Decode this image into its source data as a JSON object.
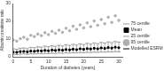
{
  "chart_data": {
    "type": "scatter",
    "x_label": "Duration of diabetes (years)",
    "y_label": "Albumin:creatinine ratio",
    "x": [
      0,
      1,
      2,
      3,
      4,
      5,
      6,
      7,
      8,
      9,
      10,
      11,
      12,
      13,
      14,
      15,
      16,
      17,
      18,
      19,
      20,
      21,
      22,
      23,
      24,
      25,
      26,
      27,
      28,
      29,
      30
    ],
    "series": [
      {
        "name": "75 centile",
        "color": "#999999",
        "marker": "dash",
        "values": [
          4.5,
          4.2,
          4.8,
          5.0,
          4.6,
          5.3,
          5.1,
          5.6,
          5.4,
          6.0,
          5.7,
          6.2,
          5.9,
          6.5,
          6.1,
          6.8,
          6.4,
          7.0,
          6.6,
          7.3,
          6.9,
          7.6,
          7.1,
          7.8,
          7.4,
          8.1,
          7.7,
          8.4,
          8.0,
          8.6,
          8.3
        ]
      },
      {
        "name": "Mean",
        "color": "#000000",
        "marker": "square",
        "values": [
          2.6,
          2.5,
          2.9,
          3.0,
          2.8,
          3.2,
          3.1,
          3.4,
          3.3,
          3.6,
          3.4,
          3.8,
          3.6,
          3.9,
          3.7,
          4.1,
          3.9,
          4.3,
          4.0,
          4.5,
          4.2,
          4.6,
          4.4,
          4.8,
          4.5,
          5.0,
          4.7,
          5.2,
          4.9,
          5.4,
          5.1
        ]
      },
      {
        "name": "25 centile",
        "color": "#999999",
        "marker": "dash",
        "values": [
          1.4,
          1.3,
          1.5,
          1.6,
          1.4,
          1.7,
          1.6,
          1.8,
          1.7,
          1.9,
          1.8,
          2.0,
          1.9,
          2.1,
          2.0,
          2.2,
          2.1,
          2.3,
          2.2,
          2.4,
          2.3,
          2.5,
          2.4,
          2.6,
          2.5,
          2.7,
          2.6,
          2.8,
          2.7,
          2.9,
          2.8
        ]
      },
      {
        "name": "95 centile",
        "color": "#b0b0b0",
        "marker": "circle",
        "values": [
          9.5,
          8.8,
          10.2,
          11.0,
          9.9,
          12.1,
          11.4,
          12.8,
          11.9,
          13.6,
          12.5,
          14.3,
          13.2,
          15.0,
          13.8,
          16.1,
          14.7,
          17.2,
          15.5,
          18.0,
          16.3,
          19.1,
          17.0,
          20.2,
          17.8,
          21.0,
          18.6,
          22.3,
          19.4,
          23.1,
          20.5
        ]
      },
      {
        "name": "Modelled ESRM",
        "color": "#000000",
        "type": "line",
        "line_style": "dotted",
        "values": [
          2.7,
          2.8,
          2.9,
          3.0,
          3.1,
          3.2,
          3.2,
          3.3,
          3.4,
          3.5,
          3.6,
          3.7,
          3.8,
          3.8,
          3.9,
          4.0,
          4.1,
          4.2,
          4.3,
          4.4,
          4.4,
          4.5,
          4.6,
          4.7,
          4.8,
          4.9,
          5.0,
          5.0,
          5.1,
          5.2,
          5.3
        ]
      }
    ],
    "xlim": [
      0,
      31
    ],
    "xticks": [
      0,
      5,
      10,
      15,
      20,
      25,
      30
    ],
    "ylim": [
      0,
      30
    ],
    "yticks": [
      0,
      10,
      20,
      30
    ],
    "grid": false,
    "legend": "right"
  }
}
